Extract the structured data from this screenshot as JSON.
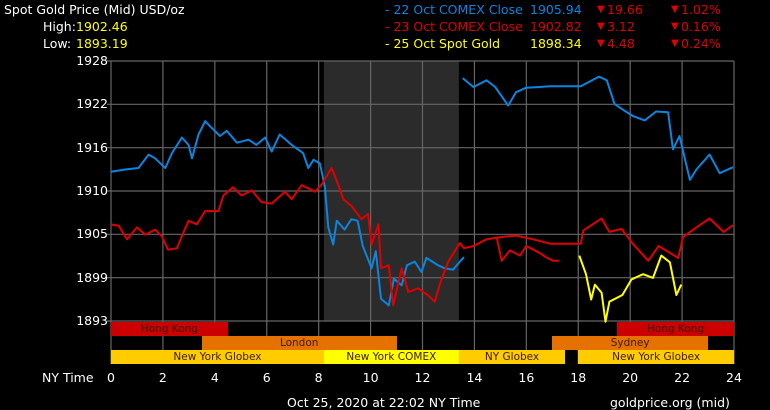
{
  "header": {
    "title": "Spot Gold Price (Mid) USD/oz",
    "high_label": "High:",
    "high_value": "1902.46",
    "low_label": "Low:",
    "low_value": "1893.19"
  },
  "legend": [
    {
      "label": "- 22 Oct COMEX Close",
      "value": "1905.94",
      "change": "19.66",
      "pct": "1.02%",
      "color": "#0a85e0",
      "direction": "down"
    },
    {
      "label": "- 23 Oct COMEX Close",
      "value": "1902.82",
      "change": "3.12",
      "pct": "0.16%",
      "color": "#e00000",
      "direction": "down"
    },
    {
      "label": "- 25 Oct Spot Gold",
      "value": "1898.34",
      "change": "4.48",
      "pct": "0.24%",
      "color": "#ffff00",
      "direction": "down"
    }
  ],
  "sessions": [
    {
      "name": "Hong Kong",
      "start": 0,
      "end": 4.5,
      "row": 0,
      "color": "#cc0000"
    },
    {
      "name": "Hong Kong",
      "start": 19.5,
      "end": 24,
      "row": 0,
      "color": "#cc0000"
    },
    {
      "name": "London",
      "start": 3.5,
      "end": 11,
      "row": 1,
      "color": "#e57200"
    },
    {
      "name": "Sydney",
      "start": 17,
      "end": 23,
      "row": 1,
      "color": "#e57200"
    },
    {
      "name": "New York Globex",
      "start": 0,
      "end": 8.2,
      "row": 2,
      "color": "#ffcc00"
    },
    {
      "name": "New York COMEX",
      "start": 8.2,
      "end": 13.4,
      "row": 2,
      "color": "#ffff00"
    },
    {
      "name": "NY Globex",
      "start": 13.4,
      "end": 17.5,
      "row": 2,
      "color": "#ffcc00"
    },
    {
      "name": "New York Globex",
      "start": 18,
      "end": 24,
      "row": 2,
      "color": "#ffcc00"
    }
  ],
  "footer": {
    "timestamp": "Oct 25, 2020 at 22:02 NY Time",
    "source": "goldprice.org (mid)"
  },
  "chart_data": {
    "type": "line",
    "xlabel": "NY Time",
    "xlim": [
      0,
      24
    ],
    "xticks": [
      "0",
      "2",
      "4",
      "6",
      "8",
      "10",
      "12",
      "14",
      "16",
      "18",
      "20",
      "22",
      "24"
    ],
    "ylim": [
      1893,
      1928
    ],
    "yticks": [
      "1928",
      "1922",
      "1916",
      "1910",
      "1905",
      "1899",
      "1893"
    ],
    "grid": true,
    "shaded_range": [
      8.2,
      13.4
    ],
    "series": [
      {
        "name": "22 Oct COMEX Close",
        "color": "#0a85e0",
        "segments": [
          [
            [
              0,
              1913.1
            ],
            [
              0.55,
              1913.4
            ],
            [
              1.06,
              1913.6
            ],
            [
              1.45,
              1915.4
            ],
            [
              1.7,
              1914.9
            ],
            [
              2.09,
              1913.6
            ],
            [
              2.35,
              1915.6
            ],
            [
              2.73,
              1917.7
            ],
            [
              2.99,
              1916.7
            ],
            [
              3.12,
              1914.9
            ],
            [
              3.37,
              1918.1
            ],
            [
              3.63,
              1919.9
            ],
            [
              3.88,
              1919
            ],
            [
              4.2,
              1917.9
            ],
            [
              4.46,
              1918.6
            ],
            [
              4.85,
              1917
            ],
            [
              5.3,
              1917.4
            ],
            [
              5.6,
              1916.7
            ],
            [
              5.94,
              1917.7
            ],
            [
              6.19,
              1915.8
            ],
            [
              6.5,
              1918.1
            ],
            [
              6.96,
              1916.7
            ],
            [
              7.4,
              1915.6
            ],
            [
              7.6,
              1913.6
            ],
            [
              7.8,
              1914.7
            ],
            [
              8.05,
              1914.2
            ],
            [
              8.24,
              1911
            ],
            [
              8.37,
              1905.6
            ],
            [
              8.56,
              1903.3
            ],
            [
              8.7,
              1906.5
            ],
            [
              9.0,
              1905.3
            ],
            [
              9.26,
              1906.7
            ],
            [
              9.5,
              1906.5
            ],
            [
              9.7,
              1903.1
            ],
            [
              10.04,
              1900.1
            ],
            [
              10.2,
              1902.4
            ],
            [
              10.4,
              1896
            ],
            [
              10.7,
              1895.1
            ],
            [
              10.9,
              1898.7
            ],
            [
              11.2,
              1897.8
            ],
            [
              11.4,
              1900.5
            ],
            [
              11.7,
              1901
            ],
            [
              11.96,
              1899.6
            ],
            [
              12.15,
              1901.5
            ],
            [
              12.6,
              1900.5
            ],
            [
              12.86,
              1900.1
            ],
            [
              13.18,
              1899.9
            ],
            [
              13.44,
              1901
            ],
            [
              13.6,
              1901.6
            ]
          ],
          [
            [
              13.55,
              1925.7
            ],
            [
              13.96,
              1924.5
            ],
            [
              14.47,
              1925.4
            ],
            [
              14.8,
              1924.5
            ],
            [
              15.3,
              1922
            ],
            [
              15.6,
              1923.8
            ],
            [
              16.0,
              1924.4
            ],
            [
              16.5,
              1924.5
            ],
            [
              16.9,
              1924.6
            ],
            [
              18.1,
              1924.6
            ],
            [
              18.8,
              1925.9
            ],
            [
              19.1,
              1925.4
            ],
            [
              19.4,
              1922.2
            ],
            [
              19.7,
              1921.5
            ],
            [
              20.1,
              1920.6
            ],
            [
              20.56,
              1920
            ],
            [
              21.0,
              1921.2
            ],
            [
              21.46,
              1921.1
            ],
            [
              21.65,
              1916.1
            ],
            [
              21.9,
              1917.9
            ],
            [
              22.3,
              1912
            ],
            [
              22.55,
              1913.4
            ],
            [
              23.06,
              1915.4
            ],
            [
              23.45,
              1912.9
            ],
            [
              23.96,
              1913.7
            ]
          ]
        ]
      },
      {
        "name": "23 Oct COMEX Close",
        "color": "#e00000",
        "segments": [
          [
            [
              0,
              1906
            ],
            [
              0.3,
              1905.8
            ],
            [
              0.62,
              1904
            ],
            [
              1.0,
              1905.6
            ],
            [
              1.32,
              1904.6
            ],
            [
              1.7,
              1905.3
            ],
            [
              1.96,
              1904.4
            ],
            [
              2.2,
              1902.6
            ],
            [
              2.54,
              1902.8
            ],
            [
              2.73,
              1904.4
            ],
            [
              2.99,
              1906.5
            ],
            [
              3.3,
              1906
            ],
            [
              3.63,
              1907.8
            ],
            [
              4.14,
              1907.8
            ],
            [
              4.33,
              1909.9
            ],
            [
              4.7,
              1911
            ],
            [
              5.03,
              1909.9
            ],
            [
              5.42,
              1910.6
            ],
            [
              5.8,
              1909
            ],
            [
              6.19,
              1908.8
            ],
            [
              6.7,
              1910.4
            ],
            [
              6.96,
              1909.4
            ],
            [
              7.35,
              1911.3
            ],
            [
              7.86,
              1910.4
            ],
            [
              8.1,
              1911.3
            ],
            [
              8.5,
              1913.6
            ],
            [
              8.76,
              1911.3
            ],
            [
              8.95,
              1909.4
            ],
            [
              9.26,
              1908.5
            ],
            [
              9.65,
              1906.7
            ],
            [
              9.9,
              1907.4
            ],
            [
              10.04,
              1903.3
            ],
            [
              10.3,
              1906
            ],
            [
              10.4,
              1900.1
            ],
            [
              10.7,
              1900.5
            ],
            [
              10.87,
              1895.1
            ],
            [
              11.2,
              1900.1
            ],
            [
              11.45,
              1896.9
            ],
            [
              11.83,
              1897.4
            ],
            [
              12.2,
              1896.5
            ],
            [
              12.47,
              1895.6
            ],
            [
              12.7,
              1898.3
            ],
            [
              12.99,
              1901
            ],
            [
              13.44,
              1903.5
            ],
            [
              13.6,
              1902.8
            ],
            [
              13.96,
              1903.1
            ],
            [
              14.47,
              1904
            ],
            [
              14.99,
              1904.3
            ],
            [
              15.6,
              1904.5
            ],
            [
              16.27,
              1904
            ],
            [
              16.9,
              1903.4
            ],
            [
              18.1,
              1903.4
            ],
            [
              18.2,
              1905.2
            ],
            [
              18.9,
              1906.8
            ],
            [
              19.2,
              1905
            ],
            [
              19.67,
              1905.4
            ],
            [
              20.1,
              1903.4
            ],
            [
              20.7,
              1901.1
            ],
            [
              21.1,
              1903.1
            ],
            [
              21.85,
              1901.5
            ],
            [
              22.04,
              1904.3
            ],
            [
              22.55,
              1905.6
            ],
            [
              23.06,
              1906.8
            ],
            [
              23.6,
              1905
            ],
            [
              23.96,
              1905.9
            ]
          ],
          [
            [
              14.86,
              1904.3
            ],
            [
              15.05,
              1901.1
            ],
            [
              15.37,
              1902.5
            ],
            [
              15.76,
              1901.8
            ],
            [
              16.0,
              1903.1
            ],
            [
              16.5,
              1902.2
            ],
            [
              16.8,
              1901.5
            ],
            [
              17.04,
              1901.1
            ],
            [
              17.27,
              1901.1
            ]
          ]
        ]
      },
      {
        "name": "25 Oct Spot Gold",
        "color": "#ffff00",
        "segments": [
          [
            [
              18.04,
              1901.8
            ],
            [
              18.3,
              1899.3
            ],
            [
              18.5,
              1895.9
            ],
            [
              18.64,
              1897.9
            ],
            [
              18.9,
              1896.8
            ],
            [
              19.05,
              1892.9
            ],
            [
              19.2,
              1895.6
            ],
            [
              19.7,
              1896.5
            ],
            [
              20.05,
              1898.6
            ],
            [
              20.5,
              1899.3
            ],
            [
              20.88,
              1898.8
            ],
            [
              21.2,
              1901.8
            ],
            [
              21.53,
              1900.9
            ],
            [
              21.78,
              1896.5
            ],
            [
              21.97,
              1897.9
            ]
          ]
        ]
      }
    ]
  }
}
